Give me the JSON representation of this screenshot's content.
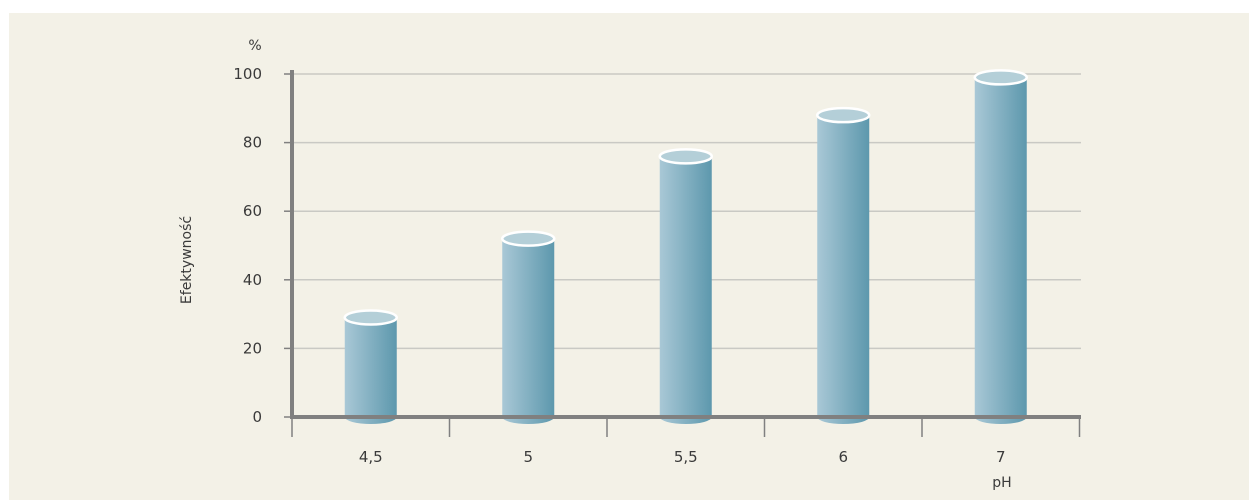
{
  "chart_data": {
    "type": "bar",
    "categories": [
      "4,5",
      "5",
      "5,5",
      "6",
      "7"
    ],
    "values": [
      29,
      52,
      76,
      88,
      99
    ],
    "ylim": [
      0,
      100
    ],
    "yticks": [
      0,
      20,
      40,
      60,
      80,
      100
    ],
    "yunit": "%",
    "ylabel": "Efektywność",
    "xlabel": "pH",
    "grid": true,
    "colors": {
      "bar_light": "#a9c8d6",
      "bar_dark": "#5d98ad",
      "bar_top": "#b4cfd8",
      "grid": "#c9c9c4",
      "axis": "#808080",
      "background": "#f3f1e7"
    }
  }
}
